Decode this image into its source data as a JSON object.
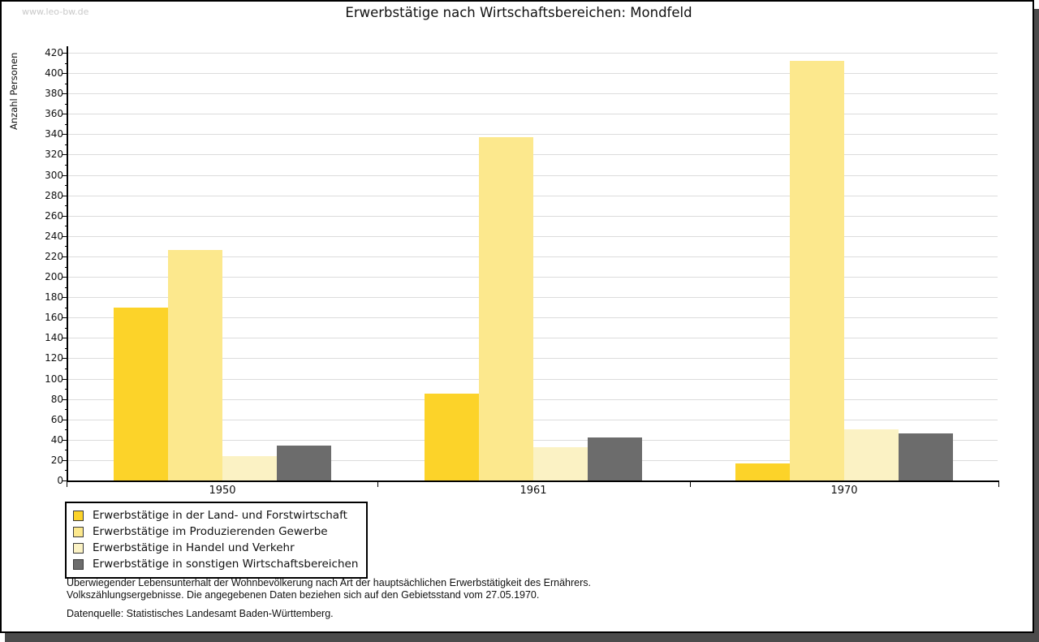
{
  "page": {
    "watermark": "www.leo-bw.de",
    "title": "Erwerbstätige nach Wirtschaftsbereichen: Mondfeld"
  },
  "chart_data": {
    "type": "bar",
    "title": "Erwerbstätige nach Wirtschaftsbereichen: Mondfeld",
    "xlabel": "",
    "ylabel": "Anzahl Personen",
    "ylim": [
      0,
      420
    ],
    "ytick_step": 20,
    "ytick_minor_step": 10,
    "grid": true,
    "legend_position": "bottom-left",
    "categories": [
      "1950",
      "1961",
      "1970"
    ],
    "series": [
      {
        "name": "Erwerbstätige in der Land- und Forstwirtschaft",
        "color": "#fcd329",
        "values": [
          170,
          85,
          17
        ]
      },
      {
        "name": "Erwerbstätige im Produzierenden Gewerbe",
        "color": "#fce88d",
        "values": [
          226,
          337,
          412
        ]
      },
      {
        "name": "Erwerbstätige in Handel und Verkehr",
        "color": "#fbf2c4",
        "values": [
          24,
          33,
          50
        ]
      },
      {
        "name": "Erwerbstätige in sonstigen Wirtschaftsbereichen",
        "color": "#6c6c6c",
        "values": [
          34,
          42,
          46
        ]
      }
    ]
  },
  "footnotes": {
    "line1": "Überwiegender Lebensunterhalt der Wohnbevölkerung nach Art der hauptsächlichen Erwerbstätigkeit des Ernährers.",
    "line2": "Volkszählungsergebnisse. Die angegebenen Daten beziehen sich auf den Gebietsstand vom 27.05.1970.",
    "source": "Datenquelle: Statistisches Landesamt Baden-Württemberg."
  },
  "colors": {
    "shadow": "#4b4b4b",
    "gridline": "#dcdcdc",
    "axis": "#000000",
    "watermark": "#c9c9c9",
    "text": "#111111"
  }
}
